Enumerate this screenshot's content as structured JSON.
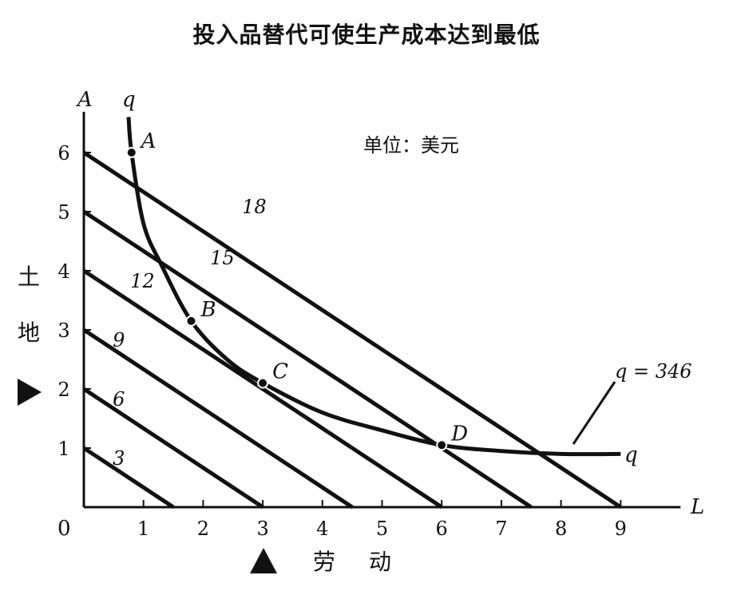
{
  "title": "投入品替代可使生产成本达到最低",
  "unit_label": "单位：美元",
  "chart_data": {
    "type": "line",
    "title": "投入品替代可使生产成本达到最低",
    "xlabel": "劳 动",
    "ylabel": "土 地",
    "x_axis_symbol": "L",
    "y_axis_symbol": "A",
    "origin_label": "0",
    "xlim": [
      0,
      9
    ],
    "ylim": [
      0,
      6
    ],
    "x_ticks": [
      1,
      2,
      3,
      4,
      5,
      6,
      7,
      8,
      9
    ],
    "y_ticks": [
      1,
      2,
      3,
      4,
      5,
      6
    ],
    "grid": false,
    "isocost_lines": [
      {
        "label": "3",
        "x_intercept": 1.5,
        "y_intercept": 1
      },
      {
        "label": "6",
        "x_intercept": 3,
        "y_intercept": 2
      },
      {
        "label": "9",
        "x_intercept": 4.5,
        "y_intercept": 3
      },
      {
        "label": "12",
        "x_intercept": 6,
        "y_intercept": 4
      },
      {
        "label": "15",
        "x_intercept": 7.5,
        "y_intercept": 5
      },
      {
        "label": "18",
        "x_intercept": 9,
        "y_intercept": 6
      }
    ],
    "isoquant": {
      "label": "q = 346",
      "end_label": "q",
      "points": [
        [
          0.75,
          6.6
        ],
        [
          0.8,
          6.0
        ],
        [
          1.0,
          4.8
        ],
        [
          1.3,
          4.1
        ],
        [
          1.8,
          3.15
        ],
        [
          2.4,
          2.5
        ],
        [
          3.0,
          2.1
        ],
        [
          4.0,
          1.6
        ],
        [
          5.0,
          1.3
        ],
        [
          6.0,
          1.05
        ],
        [
          7.0,
          0.95
        ],
        [
          8.0,
          0.9
        ],
        [
          9.0,
          0.9
        ]
      ]
    },
    "points": [
      {
        "label": "A",
        "x": 0.8,
        "y": 6.0
      },
      {
        "label": "B",
        "x": 1.8,
        "y": 3.15
      },
      {
        "label": "C",
        "x": 3.0,
        "y": 2.1
      },
      {
        "label": "D",
        "x": 6.0,
        "y": 1.05
      }
    ]
  }
}
